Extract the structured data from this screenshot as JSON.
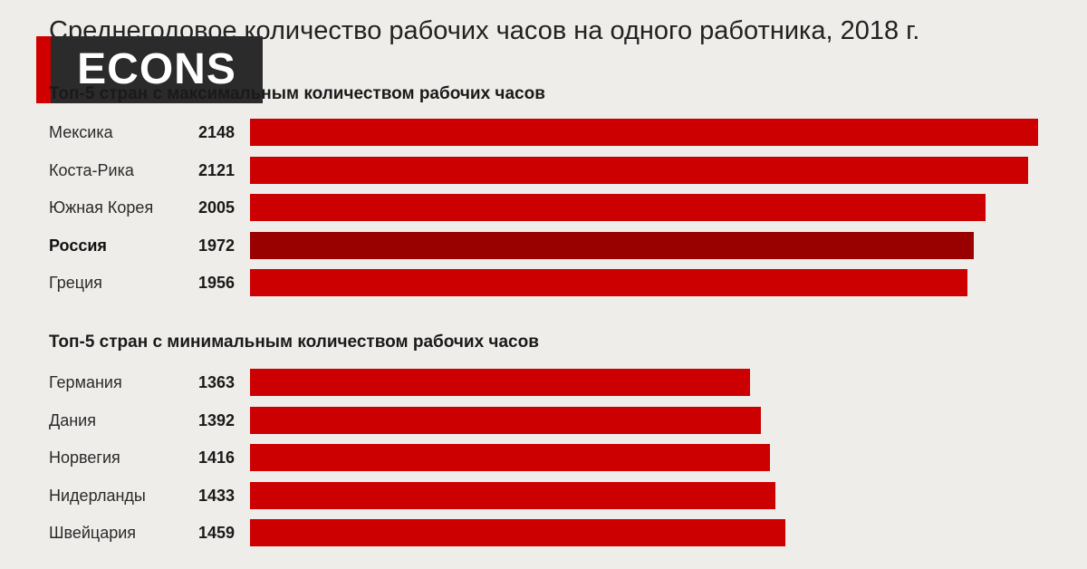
{
  "colors": {
    "bar": "#cc0000",
    "bar_highlight": "#990000",
    "background": "#efedea"
  },
  "logo": {
    "text": "ECONS"
  },
  "chart_data": {
    "type": "bar",
    "orientation": "horizontal",
    "title": "Среднегодовое количество рабочих часов на одного работника, 2018 г.",
    "grid": false,
    "xlim": [
      0,
      2148
    ],
    "groups": [
      {
        "title": "Топ-5 стран с максимальным количеством рабочих часов",
        "categories": [
          "Мексика",
          "Коста-Рика",
          "Южная Корея",
          "Россия",
          "Греция"
        ],
        "values": [
          2148,
          2121,
          2005,
          1972,
          1956
        ],
        "highlight": "Россия"
      },
      {
        "title": "Топ-5 стран с минимальным количеством рабочих часов",
        "categories": [
          "Германия",
          "Дания",
          "Норвегия",
          "Нидерланды",
          "Швейцария"
        ],
        "values": [
          1363,
          1392,
          1416,
          1433,
          1459
        ]
      }
    ]
  }
}
